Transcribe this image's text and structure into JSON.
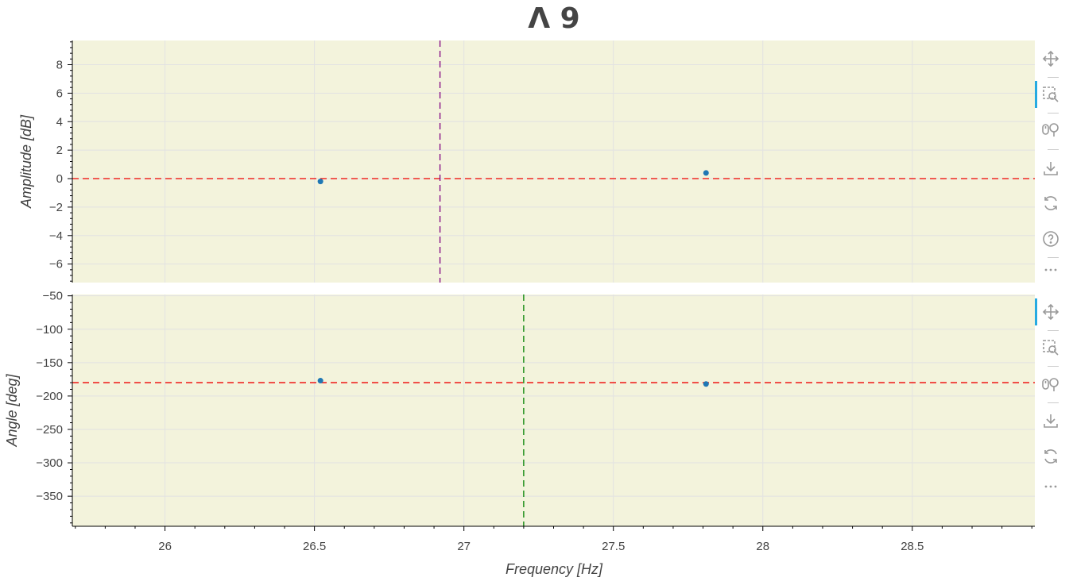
{
  "chart_data": {
    "type": "scatter",
    "title": "Λ 9",
    "xlabel": "Frequency [Hz]",
    "xlim": [
      25.69,
      28.91
    ],
    "xticks": [
      26,
      26.5,
      27,
      27.5,
      28,
      28.5
    ],
    "plot_background": "#f3f3dc",
    "grid": true,
    "panels": [
      {
        "id": "amplitude",
        "ylabel": "Amplitude [dB]",
        "ylim": [
          -7.3,
          9.7
        ],
        "yticks": [
          -6,
          -4,
          -2,
          0,
          2,
          4,
          6,
          8
        ],
        "points": [
          {
            "x": 26.52,
            "y": -0.2
          },
          {
            "x": 27.81,
            "y": 0.4
          }
        ],
        "point_color": "#1f77b4",
        "hline": {
          "y": 0,
          "color": "#ee0000"
        },
        "vline": {
          "x": 26.92,
          "color": "#800080"
        }
      },
      {
        "id": "angle",
        "ylabel": "Angle [deg]",
        "ylim": [
          -395,
          -48
        ],
        "yticks": [
          -350,
          -300,
          -250,
          -200,
          -150,
          -100,
          -50
        ],
        "points": [
          {
            "x": 26.52,
            "y": -177
          },
          {
            "x": 27.81,
            "y": -182
          }
        ],
        "point_color": "#1f77b4",
        "hline": {
          "y": -180,
          "color": "#ee0000"
        },
        "vline": {
          "x": 27.2,
          "color": "#008000"
        }
      }
    ]
  },
  "toolbars": [
    {
      "tools": [
        {
          "name": "pan-tool-icon",
          "active": false
        },
        {
          "name": "box-zoom-tool-icon",
          "active": true
        },
        {
          "name": "wheel-zoom-tool-icon",
          "active": false
        },
        {
          "name": "save-tool-icon",
          "active": false
        },
        {
          "name": "reset-tool-icon",
          "active": false
        },
        {
          "name": "help-tool-icon",
          "active": false
        },
        {
          "name": "more-tools-icon",
          "active": false
        }
      ]
    },
    {
      "tools": [
        {
          "name": "pan-tool-icon",
          "active": true
        },
        {
          "name": "box-zoom-tool-icon",
          "active": false
        },
        {
          "name": "wheel-zoom-tool-icon",
          "active": false
        },
        {
          "name": "save-tool-icon",
          "active": false
        },
        {
          "name": "reset-tool-icon",
          "active": false
        },
        {
          "name": "more-tools-icon",
          "active": false
        }
      ]
    }
  ]
}
